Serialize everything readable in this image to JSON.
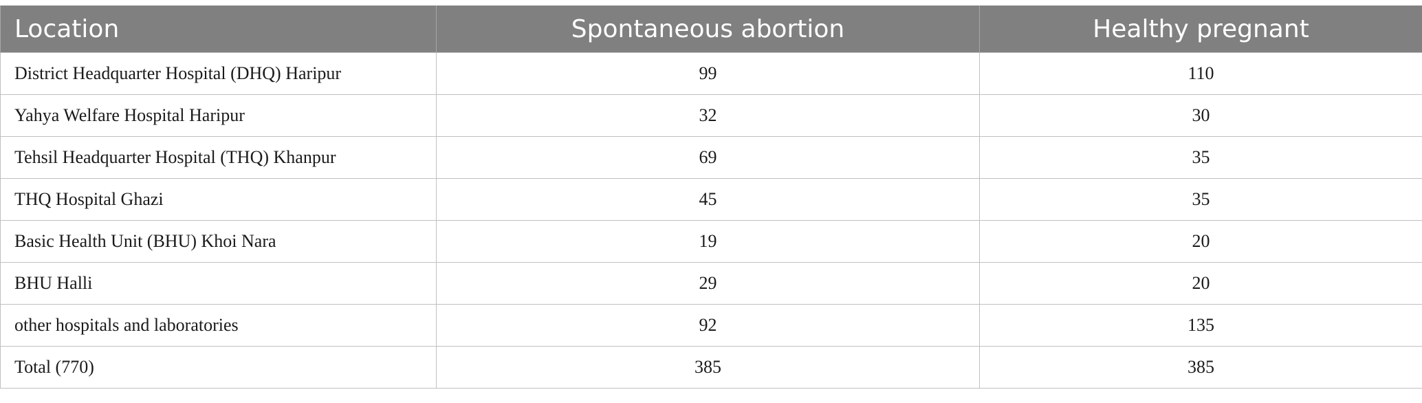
{
  "table": {
    "headers": {
      "location": "Location",
      "spontaneous": "Spontaneous abortion",
      "healthy": "Healthy pregnant"
    },
    "rows": [
      {
        "location": "District Headquarter Hospital (DHQ) Haripur",
        "spontaneous": "99",
        "healthy": "110"
      },
      {
        "location": "Yahya Welfare Hospital Haripur",
        "spontaneous": "32",
        "healthy": "30"
      },
      {
        "location": "Tehsil Headquarter Hospital (THQ) Khanpur",
        "spontaneous": "69",
        "healthy": "35"
      },
      {
        "location": "THQ Hospital Ghazi",
        "spontaneous": "45",
        "healthy": "35"
      },
      {
        "location": "Basic Health Unit (BHU) Khoi Nara",
        "spontaneous": "19",
        "healthy": "20"
      },
      {
        "location": "BHU Halli",
        "spontaneous": "29",
        "healthy": "20"
      },
      {
        "location": "other hospitals and laboratories",
        "spontaneous": "92",
        "healthy": "135"
      },
      {
        "location": "Total (770)",
        "spontaneous": "385",
        "healthy": "385"
      }
    ]
  },
  "colors": {
    "header_background": "#808080",
    "header_text": "#ffffff",
    "grid_line": "#c0c0c0"
  }
}
